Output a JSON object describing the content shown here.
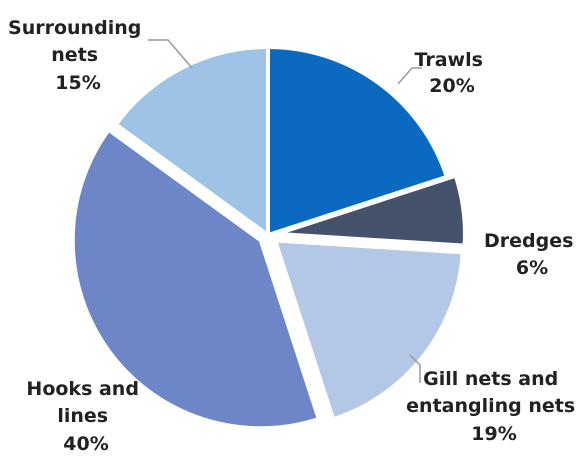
{
  "chart_data": {
    "type": "pie",
    "title": "",
    "slices": [
      {
        "label_lines": [
          "Trawls"
        ],
        "percent_label": "20%",
        "value": 20,
        "color": "#0b6abf"
      },
      {
        "label_lines": [
          "Dredges"
        ],
        "percent_label": "6%",
        "value": 6,
        "color": "#44526b"
      },
      {
        "label_lines": [
          "Gill nets and",
          "entangling nets"
        ],
        "percent_label": "19%",
        "value": 19,
        "color": "#b3c7e6"
      },
      {
        "label_lines": [
          "Hooks and",
          "lines"
        ],
        "percent_label": "40%",
        "value": 40,
        "color": "#6c86c8"
      },
      {
        "label_lines": [
          "Surrounding",
          "nets"
        ],
        "percent_label": "15%",
        "value": 15,
        "color": "#9ec3e6"
      }
    ],
    "start_angle_deg": 0,
    "direction": "clockwise",
    "exploded_slices": [
      "Dredges",
      "Gill nets and",
      "Hooks and"
    ]
  }
}
